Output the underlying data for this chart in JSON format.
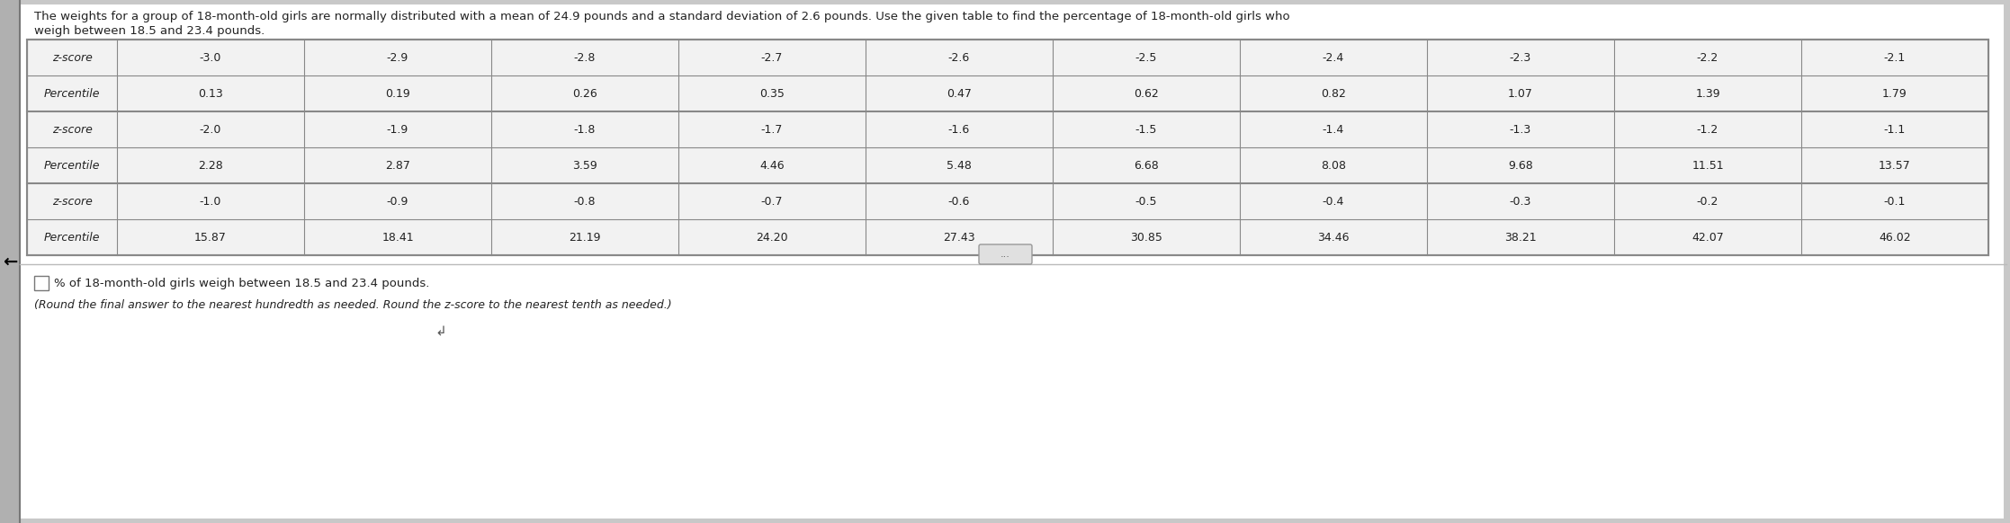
{
  "title_line1": "The weights for a group of 18-month-old girls are normally distributed with a mean of 24.9 pounds and a standard deviation of 2.6 pounds. Use the given table to find the percentage of 18-month-old girls who",
  "title_line2": "weigh between 18.5 and 23.4 pounds.",
  "table": {
    "row_labels": [
      "z-score",
      "Percentile",
      "z-score",
      "Percentile",
      "z-score",
      "Percentile"
    ],
    "data": [
      [
        "-3.0",
        "-2.9",
        "-2.8",
        "-2.7",
        "-2.6",
        "-2.5",
        "-2.4",
        "-2.3",
        "-2.2",
        "-2.1"
      ],
      [
        "0.13",
        "0.19",
        "0.26",
        "0.35",
        "0.47",
        "0.62",
        "0.82",
        "1.07",
        "1.39",
        "1.79"
      ],
      [
        "-2.0",
        "-1.9",
        "-1.8",
        "-1.7",
        "-1.6",
        "-1.5",
        "-1.4",
        "-1.3",
        "-1.2",
        "-1.1"
      ],
      [
        "2.28",
        "2.87",
        "3.59",
        "4.46",
        "5.48",
        "6.68",
        "8.08",
        "9.68",
        "11.51",
        "13.57"
      ],
      [
        "-1.0",
        "-0.9",
        "-0.8",
        "-0.7",
        "-0.6",
        "-0.5",
        "-0.4",
        "-0.3",
        "-0.2",
        "-0.1"
      ],
      [
        "15.87",
        "18.41",
        "21.19",
        "24.20",
        "27.43",
        "30.85",
        "34.46",
        "38.21",
        "42.07",
        "46.02"
      ]
    ]
  },
  "answer_text": "% of 18-month-old girls weigh between 18.5 and 23.4 pounds.",
  "note_text": "(Round the final answer to the nearest hundredth as needed. Round the z-score to the nearest tenth as needed.)",
  "bg_color": "#c8c8c8",
  "table_bg": "#f2f2f2",
  "text_color": "#222222",
  "border_color": "#888888",
  "title_fontsize": 9.5,
  "table_fontsize": 9.0,
  "answer_fontsize": 9.5,
  "note_fontsize": 9.0
}
